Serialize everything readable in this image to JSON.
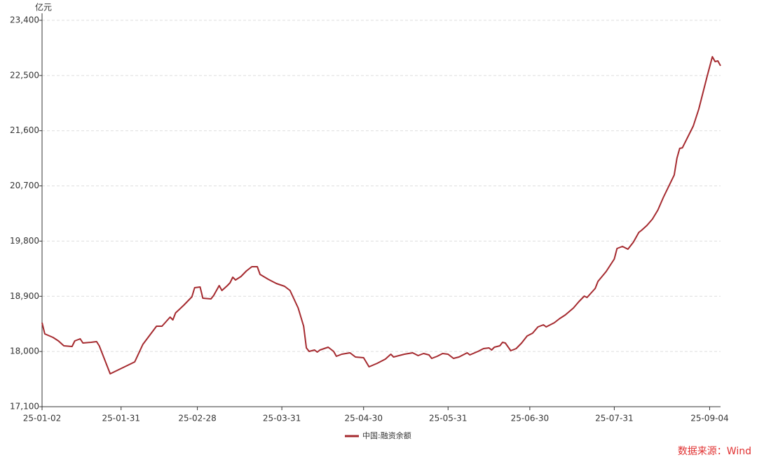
{
  "chart_data": {
    "type": "line",
    "y_label": "亿元",
    "source": "数据来源：Wind",
    "x": [
      "25-01-02",
      "25-01-03",
      "25-01-06",
      "25-01-08",
      "25-01-10",
      "25-01-13",
      "25-01-14",
      "25-01-16",
      "25-01-17",
      "25-01-20",
      "25-01-22",
      "25-01-23",
      "25-01-27",
      "25-02-05",
      "25-02-08",
      "25-02-13",
      "25-02-15",
      "25-02-18",
      "25-02-19",
      "25-02-20",
      "25-02-23",
      "25-02-26",
      "25-02-27",
      "25-03-01",
      "25-03-02",
      "25-03-05",
      "25-03-06",
      "25-03-08",
      "25-03-09",
      "25-03-11",
      "25-03-12",
      "25-03-13",
      "25-03-14",
      "25-03-16",
      "25-03-18",
      "25-03-20",
      "25-03-22",
      "25-03-23",
      "25-03-26",
      "25-03-29",
      "25-04-01",
      "25-04-03",
      "25-04-06",
      "25-04-08",
      "25-04-09",
      "25-04-10",
      "25-04-12",
      "25-04-13",
      "25-04-14",
      "25-04-17",
      "25-04-19",
      "25-04-20",
      "25-04-22",
      "25-04-25",
      "25-04-27",
      "25-04-30",
      "25-05-02",
      "25-05-05",
      "25-05-08",
      "25-05-10",
      "25-05-11",
      "25-05-15",
      "25-05-18",
      "25-05-20",
      "25-05-22",
      "25-05-24",
      "25-05-25",
      "25-05-27",
      "25-05-29",
      "25-05-31",
      "25-06-02",
      "25-06-04",
      "25-06-07",
      "25-06-08",
      "25-06-11",
      "25-06-13",
      "25-06-15",
      "25-06-16",
      "25-06-17",
      "25-06-19",
      "25-06-20",
      "25-06-21",
      "25-06-23",
      "25-06-25",
      "25-06-27",
      "25-06-29",
      "25-07-01",
      "25-07-03",
      "25-07-05",
      "25-07-06",
      "25-07-09",
      "25-07-11",
      "25-07-13",
      "25-07-16",
      "25-07-18",
      "25-07-20",
      "25-07-21",
      "25-07-24",
      "25-07-25",
      "25-07-28",
      "25-07-31",
      "25-08-01",
      "25-08-03",
      "25-08-05",
      "25-08-07",
      "25-08-09",
      "25-08-10",
      "25-08-12",
      "25-08-14",
      "25-08-16",
      "25-08-18",
      "25-08-22",
      "25-08-23",
      "25-08-24",
      "25-08-25",
      "25-08-29",
      "25-08-31",
      "25-09-03",
      "25-09-05",
      "25-09-06",
      "25-09-07",
      "25-09-08"
    ],
    "series": [
      {
        "name": "中国:融资余额",
        "color": "#a52a2f",
        "values": [
          18470,
          18287,
          18230,
          18173,
          18093,
          18082,
          18173,
          18207,
          18139,
          18150,
          18161,
          18093,
          17636,
          17830,
          18116,
          18412,
          18412,
          18561,
          18515,
          18629,
          18755,
          18892,
          19040,
          19052,
          18869,
          18858,
          18915,
          19074,
          18994,
          19074,
          19120,
          19211,
          19166,
          19223,
          19314,
          19383,
          19383,
          19257,
          19177,
          19109,
          19063,
          18994,
          18709,
          18412,
          18059,
          18002,
          18024,
          17990,
          18024,
          18070,
          18002,
          17922,
          17956,
          17979,
          17910,
          17899,
          17750,
          17808,
          17876,
          17956,
          17910,
          17956,
          17979,
          17933,
          17967,
          17945,
          17887,
          17922,
          17967,
          17956,
          17887,
          17910,
          17979,
          17945,
          18002,
          18047,
          18059,
          18024,
          18070,
          18093,
          18150,
          18139,
          18013,
          18047,
          18139,
          18253,
          18298,
          18401,
          18435,
          18401,
          18470,
          18538,
          18595,
          18709,
          18812,
          18903,
          18880,
          19029,
          19143,
          19303,
          19508,
          19679,
          19714,
          19668,
          19782,
          19942,
          19976,
          20056,
          20159,
          20307,
          20512,
          20878,
          21152,
          21311,
          21322,
          21677,
          21951,
          22476,
          22807,
          22727,
          22738,
          22658
        ]
      }
    ],
    "xlim": [
      "25-01-02",
      "25-09-08"
    ],
    "xticks": [
      "25-01-02",
      "25-01-31",
      "25-02-28",
      "25-03-31",
      "25-04-30",
      "25-05-31",
      "25-06-30",
      "25-07-31",
      "25-09-04"
    ],
    "ylim": [
      17100,
      23400
    ],
    "yticks": [
      {
        "value": 17100,
        "label": "17,100"
      },
      {
        "value": 18000,
        "label": "18,000"
      },
      {
        "value": 18900,
        "label": "18,900"
      },
      {
        "value": 19800,
        "label": "19,800"
      },
      {
        "value": 20700,
        "label": "20,700"
      },
      {
        "value": 21600,
        "label": "21,600"
      },
      {
        "value": 22500,
        "label": "22,500"
      },
      {
        "value": 23400,
        "label": "23,400"
      }
    ],
    "grid": true
  }
}
